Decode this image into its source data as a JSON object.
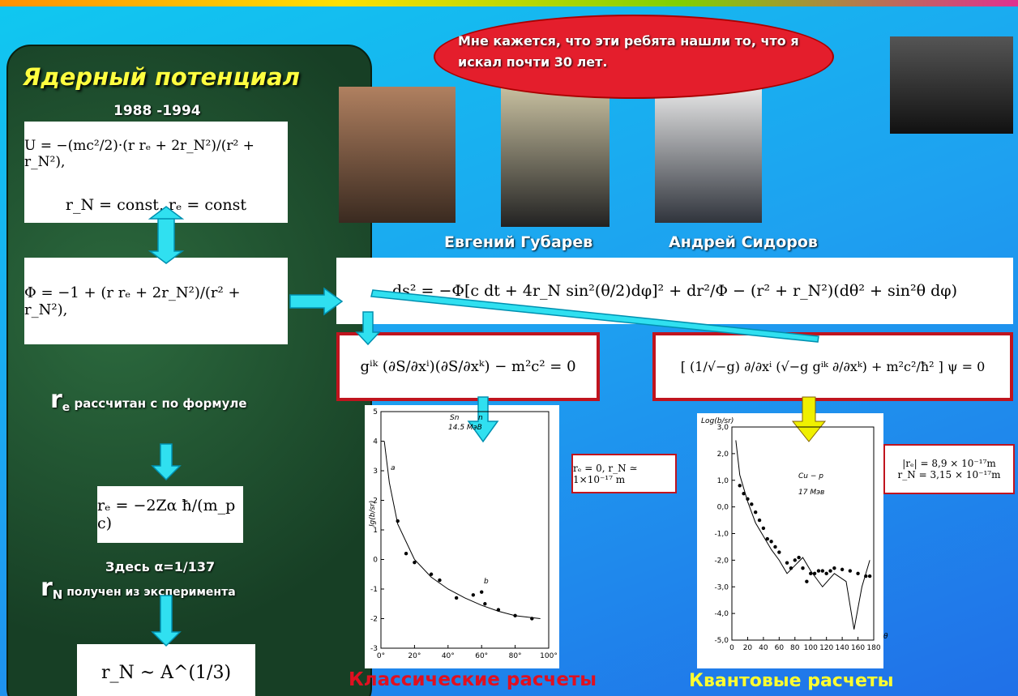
{
  "header": {
    "title": "Ядерный потенциал",
    "years": "1988 -1994"
  },
  "speech": "Мне кажется, что эти ребята нашли то, что я искал почти 30 лет.",
  "people": [
    "Евгений Губарев",
    "Андрей Сидоров"
  ],
  "formulas": {
    "potential": "U = −(mc²/2)·(r rₑ + 2r_N²)/(r² + r_N²),",
    "constants": "r_N = const,   rₑ = const",
    "phi": "Φ = −1 + (r rₑ + 2r_N²)/(r² + r_N²),",
    "metric": "ds² = −Φ[c dt + 4r_N sin²(θ/2)dφ]² + dr²/Φ − (r² + r_N²)(dθ² + sin²θ dφ)",
    "hamilton_jacobi": "gⁱᵏ (∂S/∂xⁱ)(∂S/∂xᵏ) − m²c² = 0",
    "klein_gordon": "[ (1/√−g) ∂/∂xⁱ (√−g gⁱᵏ ∂/∂xᵏ) + m²c²/ħ² ] ψ = 0",
    "re": "rₑ = −2Zα ħ/(m_p c)",
    "rn": "r_N ~ A^(1/3)"
  },
  "notes": {
    "re_symbol": "r",
    "re_sub": "e",
    "re_text": "рассчитан с по формуле",
    "alpha": "Здесь α=1/137",
    "rn_symbol": "r",
    "rn_sub": "N",
    "rn_text": "получен из эксперимента"
  },
  "plots": [
    {
      "labels": [
        "Sn",
        "n",
        "14.5 МэВ",
        "lg(b/sr)",
        "a",
        "b"
      ],
      "annotation": [
        "rₑ = 0,  r_N ≃ 1×10⁻¹⁷ m"
      ],
      "xlim": [
        0,
        100
      ],
      "ylim": [
        -3,
        5
      ],
      "xticks": [
        {
          "value": 0,
          "label": "0°"
        },
        {
          "value": 20,
          "label": "20°"
        },
        {
          "value": 40,
          "label": "40°"
        },
        {
          "value": 60,
          "label": "60°"
        },
        {
          "value": 80,
          "label": "80°"
        },
        {
          "value": 100,
          "label": "100°"
        }
      ],
      "yticks": [
        5,
        4,
        3,
        2,
        1,
        0,
        -1,
        -2,
        -3
      ],
      "points": [
        [
          10,
          1.3
        ],
        [
          15,
          0.2
        ],
        [
          20,
          -0.1
        ],
        [
          30,
          -0.5
        ],
        [
          35,
          -0.7
        ],
        [
          45,
          -1.3
        ],
        [
          55,
          -1.2
        ],
        [
          60,
          -1.1
        ],
        [
          62,
          -1.5
        ],
        [
          70,
          -1.7
        ],
        [
          80,
          -1.9
        ],
        [
          90,
          -2.0
        ]
      ],
      "curve": [
        [
          2,
          4
        ],
        [
          5,
          2.6
        ],
        [
          10,
          1.2
        ],
        [
          20,
          0
        ],
        [
          30,
          -0.6
        ],
        [
          40,
          -1.0
        ],
        [
          50,
          -1.3
        ],
        [
          60,
          -1.55
        ],
        [
          70,
          -1.75
        ],
        [
          80,
          -1.9
        ],
        [
          95,
          -2.0
        ]
      ]
    },
    {
      "labels": [
        "Log(b/sr)",
        "Cu − p",
        "17 Мэв",
        "θ"
      ],
      "annotation": [
        "|rₑ| = 8,9 × 10⁻¹⁷m",
        "r_N = 3,15 × 10⁻¹⁷m"
      ],
      "xlim": [
        0,
        180
      ],
      "ylim": [
        -5,
        3
      ],
      "xticks": [
        0,
        20,
        40,
        60,
        80,
        100,
        120,
        140,
        160,
        180
      ],
      "yticks": [
        {
          "value": 3,
          "label": "3,0"
        },
        {
          "value": 2,
          "label": "2,0"
        },
        {
          "value": 1,
          "label": "1,0"
        },
        {
          "value": 0,
          "label": "0,0"
        },
        {
          "value": -1,
          "label": "-1,0"
        },
        {
          "value": -2,
          "label": "-2,0"
        },
        {
          "value": -3,
          "label": "-3,0"
        },
        {
          "value": -4,
          "label": "-4,0"
        },
        {
          "value": -5,
          "label": "-5,0"
        }
      ],
      "points": [
        [
          10,
          0.8
        ],
        [
          15,
          0.5
        ],
        [
          20,
          0.3
        ],
        [
          25,
          0.1
        ],
        [
          30,
          -0.2
        ],
        [
          35,
          -0.5
        ],
        [
          40,
          -0.8
        ],
        [
          45,
          -1.2
        ],
        [
          50,
          -1.3
        ],
        [
          55,
          -1.5
        ],
        [
          60,
          -1.7
        ],
        [
          70,
          -2.1
        ],
        [
          75,
          -2.3
        ],
        [
          80,
          -2.0
        ],
        [
          85,
          -1.9
        ],
        [
          90,
          -2.3
        ],
        [
          95,
          -2.8
        ],
        [
          100,
          -2.5
        ],
        [
          105,
          -2.5
        ],
        [
          110,
          -2.4
        ],
        [
          115,
          -2.4
        ],
        [
          120,
          -2.5
        ],
        [
          125,
          -2.4
        ],
        [
          130,
          -2.3
        ],
        [
          140,
          -2.35
        ],
        [
          150,
          -2.4
        ],
        [
          160,
          -2.5
        ],
        [
          170,
          -2.6
        ],
        [
          175,
          -2.6
        ]
      ],
      "curve": [
        [
          5,
          2.5
        ],
        [
          10,
          1.2
        ],
        [
          20,
          0.2
        ],
        [
          30,
          -0.6
        ],
        [
          40,
          -1.1
        ],
        [
          50,
          -1.6
        ],
        [
          60,
          -2.0
        ],
        [
          70,
          -2.5
        ],
        [
          80,
          -2.2
        ],
        [
          90,
          -1.9
        ],
        [
          100,
          -2.4
        ],
        [
          115,
          -3.0
        ],
        [
          130,
          -2.5
        ],
        [
          145,
          -2.8
        ],
        [
          155,
          -4.6
        ],
        [
          165,
          -3.0
        ],
        [
          175,
          -2.0
        ]
      ]
    }
  ],
  "captions": [
    "Классические расчеты",
    "Квантовые расчеты"
  ]
}
